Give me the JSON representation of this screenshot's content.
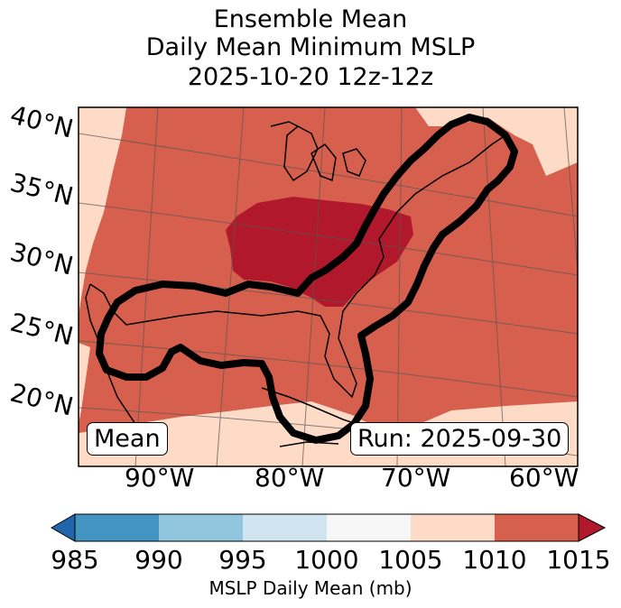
{
  "title": {
    "line1": "Ensemble Mean",
    "line2": "Daily Mean Minimum MSLP",
    "line3": "2025-10-20 12z-12z"
  },
  "map": {
    "lat_labels": [
      "40°N",
      "35°N",
      "30°N",
      "25°N",
      "20°N"
    ],
    "lon_labels": [
      "90°W",
      "80°W",
      "70°W",
      "60°W"
    ],
    "left_box": "Mean",
    "right_box": "Run: 2025-09-30"
  },
  "colorbar": {
    "label": "MSLP Daily Mean (mb)",
    "ticks": [
      "985",
      "990",
      "995",
      "1000",
      "1005",
      "1010",
      "1015"
    ],
    "bins": [
      {
        "range": "985-990",
        "color": "#4393c3"
      },
      {
        "range": "990-995",
        "color": "#92c5de"
      },
      {
        "range": "995-1000",
        "color": "#d1e5f0"
      },
      {
        "range": "1000-1005",
        "color": "#f7f7f7"
      },
      {
        "range": "1005-1010",
        "color": "#fddbc7"
      },
      {
        "range": "1010-1015",
        "color": "#d6604d"
      }
    ],
    "under_color": "#2166ac",
    "over_color": "#b2182b"
  },
  "colors": {
    "low_band": "#fddbc7",
    "mid_band": "#d6604d",
    "high_band": "#b2182b"
  }
}
